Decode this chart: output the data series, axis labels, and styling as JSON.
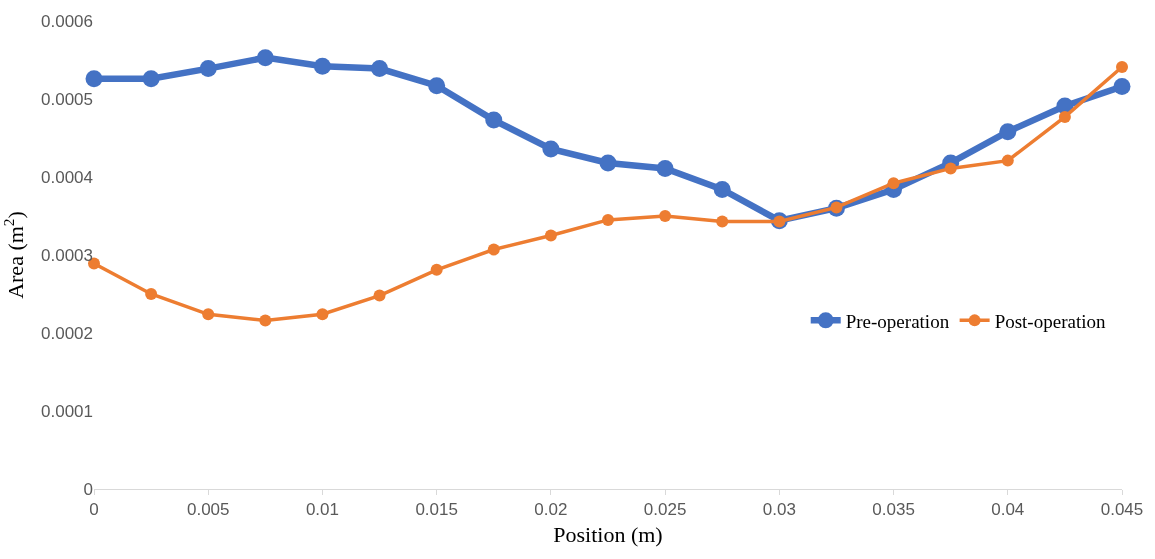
{
  "chart_data": {
    "type": "line",
    "xlabel": "Position (m)",
    "ylabel": "Area (m$^{2}$)",
    "x": [
      0,
      0.0025,
      0.005,
      0.0075,
      0.01,
      0.0125,
      0.015,
      0.0175,
      0.02,
      0.0225,
      0.025,
      0.0275,
      0.03,
      0.0325,
      0.035,
      0.0375,
      0.04,
      0.0425,
      0.045
    ],
    "series": [
      {
        "name": "Pre-operation",
        "color": "#4472c4",
        "values": [
          0.000526,
          0.000526,
          0.000539,
          0.000553,
          0.000542,
          0.000539,
          0.000517,
          0.000473,
          0.000436,
          0.000418,
          0.000411,
          0.000384,
          0.000344,
          0.00036,
          0.000384,
          0.000418,
          0.000458,
          0.000491,
          0.000516
        ]
      },
      {
        "name": "Post-operation",
        "color": "#ed7d31",
        "values": [
          0.000289,
          0.00025,
          0.000224,
          0.000216,
          0.000224,
          0.000248,
          0.000281,
          0.000307,
          0.000325,
          0.000345,
          0.00035,
          0.000343,
          0.000343,
          0.000361,
          0.000392,
          0.000411,
          0.000421,
          0.000477,
          0.000541
        ]
      }
    ],
    "xlim": [
      0,
      0.045
    ],
    "xticks": [
      0,
      0.005,
      0.01,
      0.015,
      0.02,
      0.025,
      0.03,
      0.035,
      0.04,
      0.045
    ],
    "ylim": [
      0,
      0.0006
    ],
    "yticks": [
      0,
      0.0001,
      0.0002,
      0.0003,
      0.0004,
      0.0005,
      0.0006
    ],
    "grid": false,
    "legend": "right",
    "marker": "circle",
    "line_style": "solid"
  }
}
